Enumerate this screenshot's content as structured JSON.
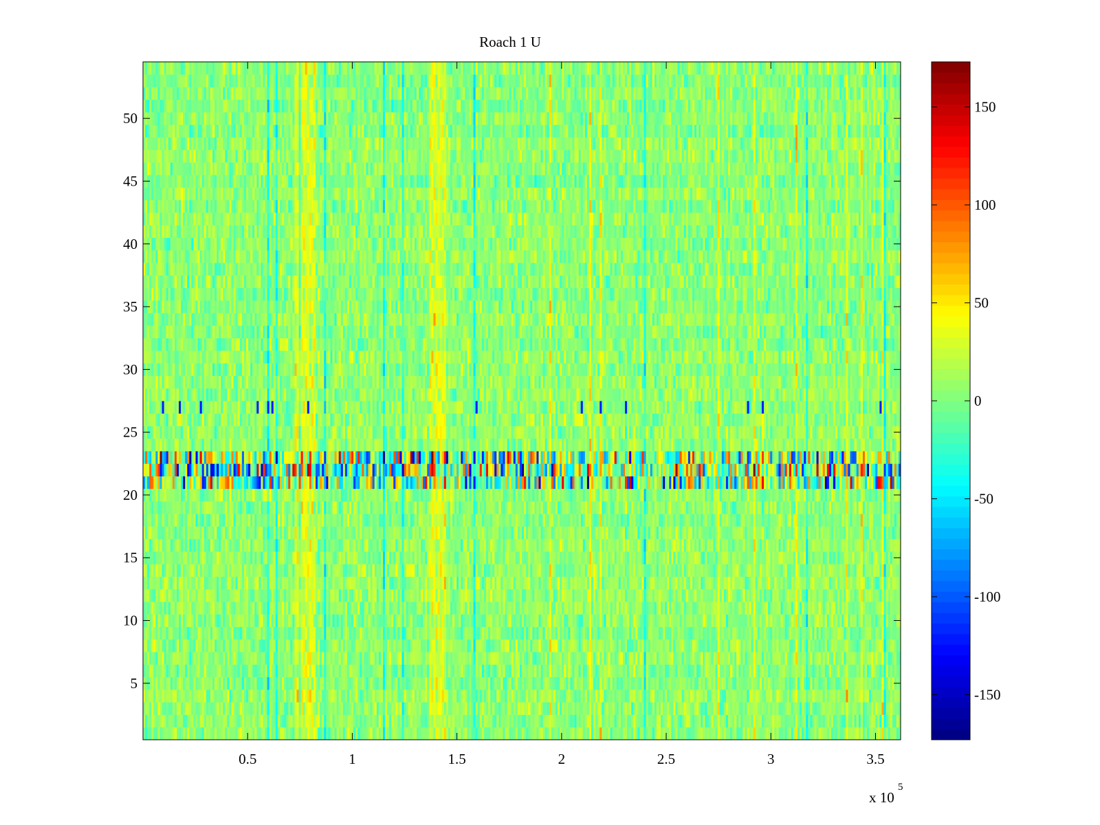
{
  "chart_data": {
    "type": "heatmap",
    "title": "Roach 1 U",
    "colormap": "jet",
    "x": {
      "range": [
        0,
        362000
      ],
      "ticks": [
        50000,
        100000,
        150000,
        200000,
        250000,
        300000,
        350000
      ],
      "tick_labels": [
        "0.5",
        "1",
        "1.5",
        "2",
        "2.5",
        "3",
        "3.5"
      ],
      "exponent_label": "x 10",
      "exponent_power": "5"
    },
    "y": {
      "range": [
        0.5,
        54.5
      ],
      "ticks": [
        5,
        10,
        15,
        20,
        25,
        30,
        35,
        40,
        45,
        50
      ],
      "tick_labels": [
        "5",
        "10",
        "15",
        "20",
        "25",
        "30",
        "35",
        "40",
        "45",
        "50"
      ],
      "rows": 54
    },
    "colorbar": {
      "range": [
        -173,
        173
      ],
      "ticks": [
        150,
        100,
        50,
        0,
        -50,
        -100,
        -150
      ],
      "tick_labels": [
        "150",
        "100",
        "50",
        "0",
        "-50",
        "-100",
        "-150"
      ]
    },
    "features": {
      "background_mean": 5,
      "noise_std": 14,
      "high_variance_band_rows": [
        21,
        22,
        23
      ],
      "high_variance_amplitude": 150,
      "warm_vertical_bands_x": [
        [
          72000,
          82000
        ],
        [
          137000,
          145000
        ]
      ],
      "warm_band_boost": 30,
      "dropout_spike_rows": [
        27
      ],
      "dropout_spike_value": -120
    }
  }
}
